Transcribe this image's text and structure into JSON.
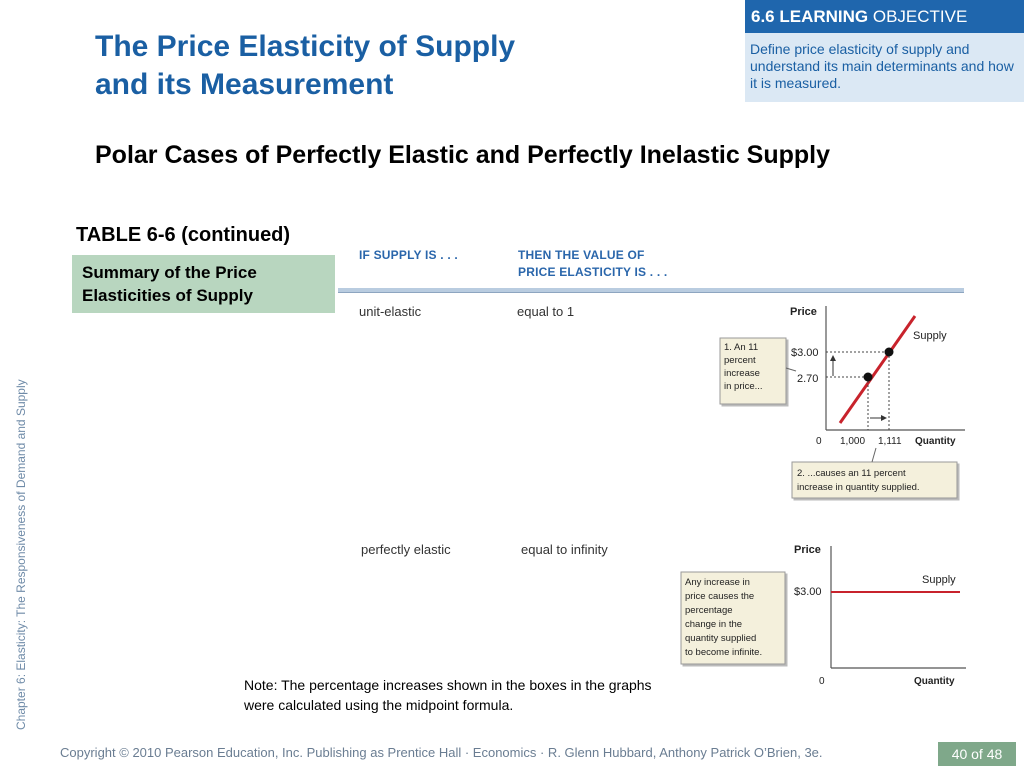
{
  "slide": {
    "title_line1": "The Price Elasticity of Supply",
    "title_line2": "and its Measurement",
    "subtitle": "Polar Cases of Perfectly Elastic and Perfectly Inelastic Supply",
    "side_label": "Chapter 6:  Elasticity:  The Responsiveness of Demand and Supply",
    "note": "Note: The percentage increases shown in the boxes in the graphs were calculated using the midpoint formula.",
    "footer": "Copyright © 2010 Pearson Education, Inc. Publishing as Prentice Hall · Economics · R. Glenn Hubbard, Anthony Patrick O’Brien, 3e.",
    "page": "40 of 48"
  },
  "objective": {
    "number_bold": "6.6 LEARNING",
    "label": "OBJECTIVE",
    "text": "Define price elasticity of supply and understand its main determinants and how it is measured."
  },
  "table": {
    "label": "TABLE 6-6 (continued)",
    "summary": "Summary of the Price Elasticities of Supply",
    "col1_head": "IF SUPPLY IS . . .",
    "col2_head_line1": "THEN THE VALUE OF",
    "col2_head_line2": "PRICE ELASTICITY IS . . .",
    "rows": [
      {
        "supply": "unit-elastic",
        "value": "equal to 1"
      },
      {
        "supply": "perfectly elastic",
        "value": "equal to infinity"
      }
    ]
  },
  "graph1": {
    "y_label": "Price",
    "x_label": "Quantity",
    "curve_label": "Supply",
    "p_high": "$3.00",
    "p_low": "2.70",
    "origin": "0",
    "q_low": "1,000",
    "q_high": "1,111",
    "callout1": [
      "1. An 11",
      "percent",
      "increase",
      "in price..."
    ],
    "callout2": [
      "2. ...causes an 11 percent",
      "increase in quantity supplied."
    ],
    "colors": {
      "curve": "#c8232c",
      "callout_bg": "#f4f0dc"
    }
  },
  "graph2": {
    "y_label": "Price",
    "x_label": "Quantity",
    "curve_label": "Supply",
    "price": "$3.00",
    "origin": "0",
    "callout": [
      "Any increase in",
      "price causes the",
      "percentage",
      "change in the",
      "quantity supplied",
      "to become infinite."
    ],
    "colors": {
      "curve": "#c8232c"
    }
  }
}
